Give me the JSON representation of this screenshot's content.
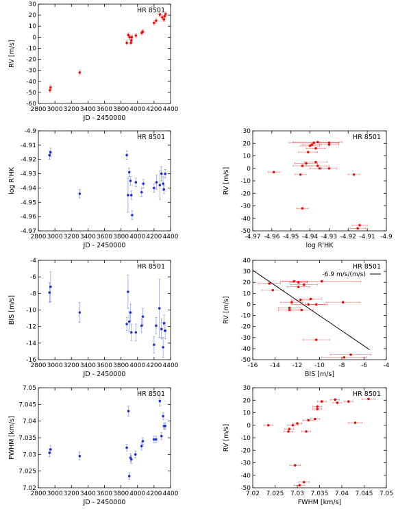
{
  "colors": {
    "red": "#e8100d",
    "blue": "#1c2fd6",
    "axis": "#000000"
  },
  "chart_data": [
    {
      "id": "rv_time",
      "type": "scatter",
      "title": "HR 8501",
      "xlabel": "JD - 2450000",
      "ylabel": "RV [m/s]",
      "xlim": [
        2800,
        4400
      ],
      "ylim": [
        -60,
        30
      ],
      "xticks": [
        2800,
        3000,
        3200,
        3400,
        3600,
        3800,
        4000,
        4200,
        4400
      ],
      "yticks": [
        -60,
        -50,
        -40,
        -30,
        -20,
        -10,
        0,
        10,
        20,
        30
      ],
      "color": "red",
      "points": [
        {
          "x": 2940,
          "y": -48,
          "ey": 2
        },
        {
          "x": 2948,
          "y": -45.5,
          "ey": 2
        },
        {
          "x": 3300,
          "y": -32,
          "ey": 2
        },
        {
          "x": 3870,
          "y": -5,
          "ey": 2
        },
        {
          "x": 3888,
          "y": 2,
          "ey": 2
        },
        {
          "x": 3905,
          "y": 0,
          "ey": 2
        },
        {
          "x": 3920,
          "y": -5,
          "ey": 2
        },
        {
          "x": 3925,
          "y": -3,
          "ey": 2
        },
        {
          "x": 3932,
          "y": 0,
          "ey": 2
        },
        {
          "x": 3980,
          "y": 1.5,
          "ey": 2
        },
        {
          "x": 4050,
          "y": 4,
          "ey": 2
        },
        {
          "x": 4065,
          "y": 5,
          "ey": 2
        },
        {
          "x": 4200,
          "y": 13,
          "ey": 2
        },
        {
          "x": 4225,
          "y": 15,
          "ey": 2
        },
        {
          "x": 4270,
          "y": 20.5,
          "ey": 2
        },
        {
          "x": 4300,
          "y": 18,
          "ey": 2
        },
        {
          "x": 4320,
          "y": 16,
          "ey": 2
        },
        {
          "x": 4330,
          "y": 19,
          "ey": 2
        },
        {
          "x": 4340,
          "y": 21,
          "ey": 2
        }
      ]
    },
    {
      "id": "logrhk_time",
      "type": "scatter",
      "title": "HR 8501",
      "xlabel": "JD - 2450000",
      "ylabel": "log R'HK",
      "xlim": [
        2800,
        4400
      ],
      "ylim": [
        -4.97,
        -4.9
      ],
      "xticks": [
        2800,
        3000,
        3200,
        3400,
        3600,
        3800,
        4000,
        4200,
        4400
      ],
      "yticks": [
        "-4.97",
        "-4.96",
        "-4.95",
        "-4.94",
        "-4.93",
        "-4.92",
        "-4.91",
        "-4.9"
      ],
      "color": "blue",
      "points": [
        {
          "x": 2935,
          "y": -4.917,
          "ey": 0.003
        },
        {
          "x": 2948,
          "y": -4.915,
          "ey": 0.003
        },
        {
          "x": 3300,
          "y": -4.944,
          "ey": 0.003
        },
        {
          "x": 3870,
          "y": -4.917,
          "ey": 0.003
        },
        {
          "x": 3885,
          "y": -4.945,
          "ey": 0.012
        },
        {
          "x": 3900,
          "y": -4.929,
          "ey": 0.003
        },
        {
          "x": 3915,
          "y": -4.935,
          "ey": 0.003
        },
        {
          "x": 3925,
          "y": -4.945,
          "ey": 0.003
        },
        {
          "x": 3935,
          "y": -4.959,
          "ey": 0.003
        },
        {
          "x": 3980,
          "y": -4.936,
          "ey": 0.003
        },
        {
          "x": 4050,
          "y": -4.943,
          "ey": 0.003
        },
        {
          "x": 4070,
          "y": -4.937,
          "ey": 0.003
        },
        {
          "x": 4200,
          "y": -4.94,
          "ey": 0.003
        },
        {
          "x": 4230,
          "y": -4.936,
          "ey": 0.005
        },
        {
          "x": 4270,
          "y": -4.938,
          "ey": 0.01
        },
        {
          "x": 4290,
          "y": -4.93,
          "ey": 0.005
        },
        {
          "x": 4310,
          "y": -4.937,
          "ey": 0.005
        },
        {
          "x": 4320,
          "y": -4.941,
          "ey": 0.003
        },
        {
          "x": 4335,
          "y": -4.93,
          "ey": 0.003
        }
      ]
    },
    {
      "id": "rv_logrhk",
      "type": "scatter",
      "title": "HR 8501",
      "xlabel": "log R'HK",
      "ylabel": "RV [m/s]",
      "xlim": [
        -4.97,
        -4.9
      ],
      "ylim": [
        -50,
        30
      ],
      "xticks": [
        "-4.97",
        "-4.96",
        "-4.95",
        "-4.94",
        "-4.93",
        "-4.92",
        "-4.91",
        "-4.9"
      ],
      "yticks": [
        -50,
        -40,
        -30,
        -20,
        -10,
        0,
        10,
        20,
        30
      ],
      "color": "red",
      "points": [
        {
          "x": -4.959,
          "y": -3,
          "ex": 0.003
        },
        {
          "x": -4.945,
          "y": -5,
          "ex": 0.003
        },
        {
          "x": -4.944,
          "y": -32,
          "ex": 0.003
        },
        {
          "x": -4.944,
          "y": 2,
          "ex": 0.005
        },
        {
          "x": -4.942,
          "y": 4,
          "ex": 0.006
        },
        {
          "x": -4.941,
          "y": 13,
          "ex": 0.005
        },
        {
          "x": -4.94,
          "y": 18,
          "ex": 0.005
        },
        {
          "x": -4.939,
          "y": 19,
          "ex": 0.005
        },
        {
          "x": -4.938,
          "y": 20.5,
          "ex": 0.013
        },
        {
          "x": -4.937,
          "y": 5,
          "ex": 0.006
        },
        {
          "x": -4.937,
          "y": 16,
          "ex": 0.005
        },
        {
          "x": -4.936,
          "y": 21,
          "ex": 0.013
        },
        {
          "x": -4.936,
          "y": 2,
          "ex": 0.006
        },
        {
          "x": -4.935,
          "y": 0,
          "ex": 0.005
        },
        {
          "x": -4.93,
          "y": 19,
          "ex": 0.005
        },
        {
          "x": -4.93,
          "y": 20.5,
          "ex": 0.005
        },
        {
          "x": -4.93,
          "y": 0,
          "ex": 0.004
        },
        {
          "x": -4.917,
          "y": -5,
          "ex": 0.003
        },
        {
          "x": -4.915,
          "y": -48,
          "ex": 0.004
        },
        {
          "x": -4.914,
          "y": -45.5,
          "ex": 0.004
        }
      ]
    },
    {
      "id": "bis_time",
      "type": "scatter",
      "title": "HR 8501",
      "xlabel": "JD - 2450000",
      "ylabel": "BIS [m/s]",
      "xlim": [
        2800,
        4400
      ],
      "ylim": [
        -16,
        -4
      ],
      "xticks": [
        2800,
        3000,
        3200,
        3400,
        3600,
        3800,
        4000,
        4200,
        4400
      ],
      "yticks": [
        -16,
        -14,
        -12,
        -10,
        -8,
        -6,
        -4
      ],
      "color": "blue",
      "points": [
        {
          "x": 2935,
          "y": -7.9,
          "ey": 1.2
        },
        {
          "x": 2948,
          "y": -7.2,
          "ey": 1.8
        },
        {
          "x": 3300,
          "y": -10.3,
          "ey": 1.2
        },
        {
          "x": 3870,
          "y": -11.7,
          "ey": 0.8
        },
        {
          "x": 3885,
          "y": -7.8,
          "ey": 2.0
        },
        {
          "x": 3900,
          "y": -11.4,
          "ey": 1.2
        },
        {
          "x": 3915,
          "y": -10.3,
          "ey": 1.0
        },
        {
          "x": 3925,
          "y": -12.7,
          "ey": 1.0
        },
        {
          "x": 3980,
          "y": -12.7,
          "ey": 1.0
        },
        {
          "x": 4050,
          "y": -11.9,
          "ey": 0.8
        },
        {
          "x": 4065,
          "y": -10.8,
          "ey": 1.0
        },
        {
          "x": 4200,
          "y": -14.2,
          "ey": 1.0
        },
        {
          "x": 4225,
          "y": -11.9,
          "ey": 1.0
        },
        {
          "x": 4265,
          "y": -9.8,
          "ey": 3.5
        },
        {
          "x": 4290,
          "y": -12.3,
          "ey": 1.2
        },
        {
          "x": 4310,
          "y": -14.5,
          "ey": 1.2
        },
        {
          "x": 4320,
          "y": -11.6,
          "ey": 1.0
        },
        {
          "x": 4335,
          "y": -12.5,
          "ey": 1.0
        }
      ]
    },
    {
      "id": "rv_bis",
      "type": "scatter",
      "title": "HR 8501",
      "xlabel": "BIS [m/s]",
      "ylabel": "RV [m/s]",
      "xlim": [
        -16,
        -4
      ],
      "ylim": [
        -50,
        40
      ],
      "xticks": [
        -16,
        -14,
        -12,
        -10,
        -8,
        -6,
        -4
      ],
      "yticks": [
        -50,
        -40,
        -30,
        -20,
        -10,
        0,
        10,
        20,
        30,
        40
      ],
      "color": "red",
      "legend": "-6.9 m/s/(m/s)",
      "fit": {
        "x": [
          -16,
          -5.5
        ],
        "y": [
          31,
          -41
        ]
      },
      "points": [
        {
          "x": -14.5,
          "y": 19,
          "ex": 1.0
        },
        {
          "x": -14.2,
          "y": 13,
          "ex": 1.0
        },
        {
          "x": -12.7,
          "y": -3,
          "ex": 1.0
        },
        {
          "x": -12.7,
          "y": -5,
          "ex": 1.0
        },
        {
          "x": -12.5,
          "y": 2,
          "ex": 1.0
        },
        {
          "x": -12.3,
          "y": 21,
          "ex": 1.2
        },
        {
          "x": -11.9,
          "y": 20,
          "ex": 0.8
        },
        {
          "x": -11.9,
          "y": 16,
          "ex": 1.0
        },
        {
          "x": -11.7,
          "y": 4,
          "ex": 0.8
        },
        {
          "x": -11.6,
          "y": -5,
          "ex": 1.0
        },
        {
          "x": -11.4,
          "y": 18,
          "ex": 1.2
        },
        {
          "x": -11.0,
          "y": 0,
          "ex": 1.5
        },
        {
          "x": -10.8,
          "y": 5,
          "ex": 1.0
        },
        {
          "x": -10.3,
          "y": 0,
          "ex": 1.0
        },
        {
          "x": -10.3,
          "y": -32,
          "ex": 1.2
        },
        {
          "x": -9.8,
          "y": 21,
          "ex": 3.5
        },
        {
          "x": -7.9,
          "y": 2,
          "ex": 1.5
        },
        {
          "x": -7.8,
          "y": -48,
          "ex": 2.0
        },
        {
          "x": -7.2,
          "y": -45.5,
          "ex": 1.8
        }
      ]
    },
    {
      "id": "fwhm_time",
      "type": "scatter",
      "title": "HR 8501",
      "xlabel": "JD - 2450000",
      "ylabel": "FWHM [km/s]",
      "xlim": [
        2800,
        4400
      ],
      "ylim": [
        7.02,
        7.05
      ],
      "xticks": [
        2800,
        3000,
        3200,
        3400,
        3600,
        3800,
        4000,
        4200,
        4400
      ],
      "yticks": [
        "7.02",
        "7.025",
        "7.03",
        "7.035",
        "7.04",
        "7.045",
        "7.05"
      ],
      "color": "blue",
      "points": [
        {
          "x": 2935,
          "y": 7.0305,
          "ey": 0.0012
        },
        {
          "x": 2948,
          "y": 7.0315,
          "ey": 0.0012
        },
        {
          "x": 3300,
          "y": 7.0295,
          "ey": 0.0012
        },
        {
          "x": 3870,
          "y": 7.032,
          "ey": 0.001
        },
        {
          "x": 3890,
          "y": 7.043,
          "ey": 0.0015
        },
        {
          "x": 3900,
          "y": 7.0235,
          "ey": 0.001
        },
        {
          "x": 3915,
          "y": 7.029,
          "ey": 0.0012
        },
        {
          "x": 3925,
          "y": 7.0285,
          "ey": 0.0012
        },
        {
          "x": 3975,
          "y": 7.03,
          "ey": 0.001
        },
        {
          "x": 4050,
          "y": 7.0325,
          "ey": 0.0012
        },
        {
          "x": 4065,
          "y": 7.034,
          "ey": 0.001
        },
        {
          "x": 4200,
          "y": 7.0345,
          "ey": 0.001
        },
        {
          "x": 4225,
          "y": 7.0345,
          "ey": 0.001
        },
        {
          "x": 4270,
          "y": 7.046,
          "ey": 0.0015
        },
        {
          "x": 4290,
          "y": 7.0355,
          "ey": 0.001
        },
        {
          "x": 4310,
          "y": 7.0415,
          "ey": 0.001
        },
        {
          "x": 4320,
          "y": 7.0385,
          "ey": 0.001
        },
        {
          "x": 4335,
          "y": 7.0385,
          "ey": 0.001
        }
      ]
    },
    {
      "id": "rv_fwhm",
      "type": "scatter",
      "title": "HR 8501",
      "xlabel": "FWHM [km/s]",
      "ylabel": "RV [m/s]",
      "xlim": [
        7.02,
        7.05
      ],
      "ylim": [
        -50,
        30
      ],
      "xticks": [
        "7.02",
        "7.025",
        "7.03",
        "7.035",
        "7.04",
        "7.045",
        "7.05"
      ],
      "yticks": [
        -50,
        -40,
        -30,
        -20,
        -10,
        0,
        10,
        20,
        30
      ],
      "color": "red",
      "points": [
        {
          "x": 7.0235,
          "y": 0,
          "ex": 0.001
        },
        {
          "x": 7.028,
          "y": -5,
          "ex": 0.001
        },
        {
          "x": 7.0282,
          "y": -3,
          "ex": 0.001
        },
        {
          "x": 7.029,
          "y": 0,
          "ex": 0.0012
        },
        {
          "x": 7.0295,
          "y": -32,
          "ex": 0.0012
        },
        {
          "x": 7.03,
          "y": 1.5,
          "ex": 0.001
        },
        {
          "x": 7.0305,
          "y": -48,
          "ex": 0.0012
        },
        {
          "x": 7.0315,
          "y": -45.5,
          "ex": 0.0012
        },
        {
          "x": 7.032,
          "y": -5,
          "ex": 0.001
        },
        {
          "x": 7.0325,
          "y": 4,
          "ex": 0.0012
        },
        {
          "x": 7.034,
          "y": 5,
          "ex": 0.001
        },
        {
          "x": 7.0345,
          "y": 13,
          "ex": 0.001
        },
        {
          "x": 7.0345,
          "y": 15,
          "ex": 0.001
        },
        {
          "x": 7.0355,
          "y": 19,
          "ex": 0.001
        },
        {
          "x": 7.0385,
          "y": 20.5,
          "ex": 0.001
        },
        {
          "x": 7.039,
          "y": 18,
          "ex": 0.001
        },
        {
          "x": 7.0415,
          "y": 19,
          "ex": 0.001
        },
        {
          "x": 7.043,
          "y": 2,
          "ex": 0.0015
        },
        {
          "x": 7.046,
          "y": 21,
          "ex": 0.0015
        }
      ]
    }
  ]
}
